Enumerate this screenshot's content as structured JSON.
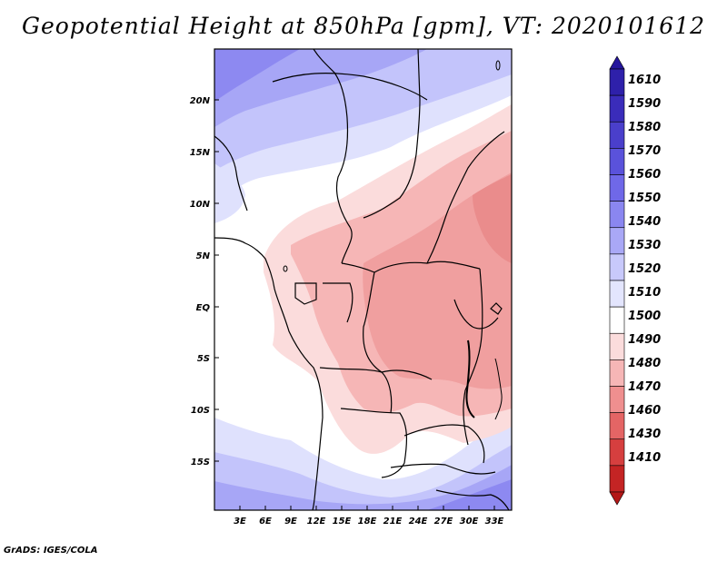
{
  "title": "Geopotential Height at 850hPa [gpm], VT: 2020101612",
  "footer": "GrADS: IGES/COLA",
  "map": {
    "lon_range": [
      0,
      35
    ],
    "lat_range": [
      -20,
      25
    ],
    "lat_ticks": [
      "20N",
      "15N",
      "10N",
      "5N",
      "EQ",
      "5S",
      "10S",
      "15S"
    ],
    "lon_ticks": [
      "3E",
      "6E",
      "9E",
      "12E",
      "15E",
      "18E",
      "21E",
      "24E",
      "27E",
      "30E",
      "33E"
    ]
  },
  "colorbar": {
    "levels": [
      "1610",
      "1590",
      "1580",
      "1570",
      "1560",
      "1550",
      "1540",
      "1530",
      "1520",
      "1510",
      "1500",
      "1490",
      "1480",
      "1470",
      "1460",
      "1430",
      "1410"
    ],
    "colors": [
      "#25169c",
      "#2e20aa",
      "#3a2cba",
      "#4a3fcb",
      "#5a52db",
      "#6f68e8",
      "#8a86f0",
      "#a9a8f6",
      "#c8c9fb",
      "#e3e5fd",
      "#ffffff",
      "#fbdcdc",
      "#f6b6b6",
      "#ef8f8f",
      "#e46565",
      "#d63f3f",
      "#c42424",
      "#b31717"
    ]
  }
}
